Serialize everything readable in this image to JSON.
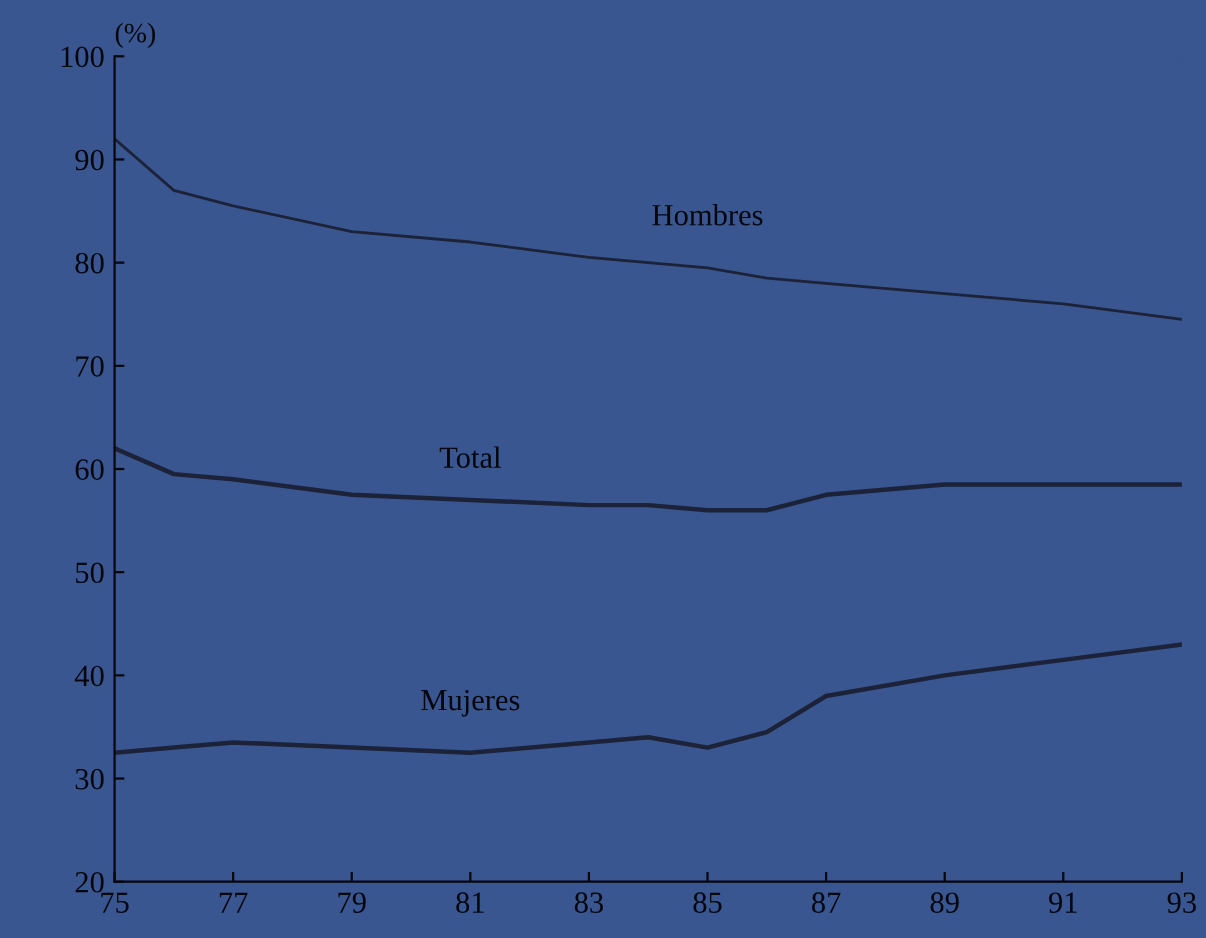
{
  "chart_data": {
    "type": "line",
    "ylabel": "(%)",
    "x": [
      75,
      76,
      77,
      79,
      81,
      83,
      84,
      85,
      86,
      87,
      89,
      91,
      93
    ],
    "series": [
      {
        "name": "Hombres",
        "color": "#1c2238",
        "values": [
          92,
          87,
          85.5,
          83,
          82,
          80.5,
          80,
          79.5,
          78.5,
          78,
          77,
          76,
          74.5
        ]
      },
      {
        "name": "Total",
        "color": "#1c2238",
        "values": [
          62,
          59.5,
          59,
          57.5,
          57,
          56.5,
          56.5,
          56,
          56,
          57.5,
          58.5,
          58.5,
          58.5
        ]
      },
      {
        "name": "Mujeres",
        "color": "#1c2238",
        "values": [
          32.5,
          33,
          33.5,
          33,
          32.5,
          33.5,
          34,
          33,
          34.5,
          38,
          40,
          41.5,
          43
        ]
      }
    ],
    "xlim": [
      75,
      93
    ],
    "xticks": [
      75,
      77,
      79,
      81,
      83,
      85,
      87,
      89,
      91,
      93
    ],
    "ylim": [
      20,
      100
    ],
    "yticks": [
      20,
      30,
      40,
      50,
      60,
      70,
      80,
      90,
      100
    ],
    "grid": false,
    "legend": false,
    "marker": "none",
    "line_style": "solid"
  }
}
